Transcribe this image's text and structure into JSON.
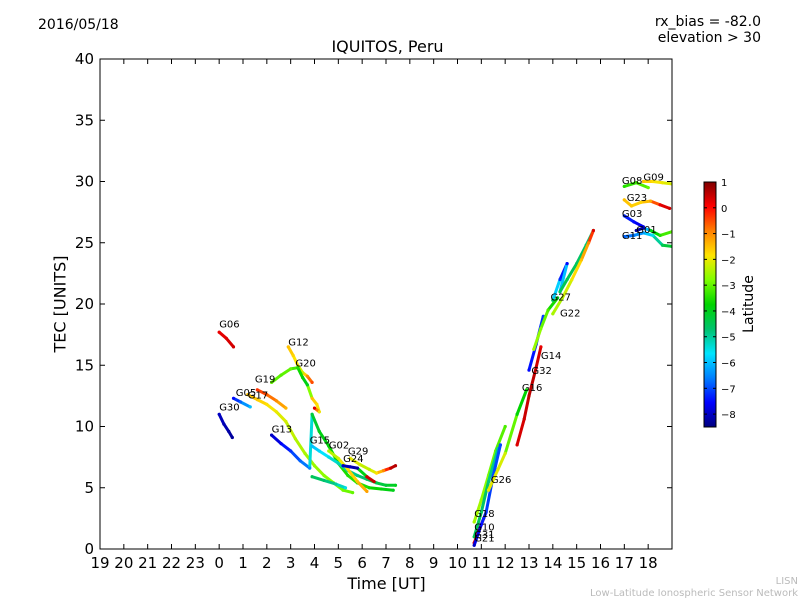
{
  "date": "2016/05/18",
  "params": {
    "rx_bias": "rx_bias = -82.0",
    "elevation": "elevation > 30"
  },
  "credit": {
    "line1": "LISN",
    "line2": "Low-Latitude Ionospheric Sensor Network"
  },
  "colorbar": {
    "label": "Latitude",
    "ticks": [
      "1",
      "0",
      "−1",
      "−2",
      "−3",
      "−4",
      "−5",
      "−6",
      "−7",
      "−8"
    ],
    "stops": [
      "#00007f",
      "#0000ff",
      "#007fff",
      "#00e5ff",
      "#00c36c",
      "#00d400",
      "#7fff00",
      "#ffe500",
      "#ff8000",
      "#ff0000",
      "#800000"
    ]
  },
  "chart_data": {
    "type": "scatter",
    "title": "IQUITOS, Peru",
    "xlabel": "Time [UT]",
    "ylabel": "TEC [UNITS]",
    "xlim": [
      19,
      43
    ],
    "ylim": [
      0,
      40
    ],
    "xticks": [
      19,
      20,
      21,
      22,
      23,
      24,
      25,
      26,
      27,
      28,
      29,
      30,
      31,
      32,
      33,
      34,
      35,
      36,
      37,
      38,
      39,
      40,
      41,
      42
    ],
    "xticklabels": [
      "19",
      "20",
      "21",
      "22",
      "23",
      "0",
      "1",
      "2",
      "3",
      "4",
      "5",
      "6",
      "7",
      "8",
      "9",
      "10",
      "11",
      "12",
      "13",
      "14",
      "15",
      "16",
      "17",
      "18"
    ],
    "yticks": [
      0,
      5,
      10,
      15,
      20,
      25,
      30,
      35,
      40
    ],
    "yticklabels": [
      "0",
      "5",
      "10",
      "15",
      "20",
      "25",
      "30",
      "35",
      "40"
    ],
    "color_scale": {
      "name": "Latitude",
      "min": -8.5,
      "max": 1.0
    },
    "series": [
      {
        "name": "G06",
        "label_at": [
          24.0,
          18.1
        ],
        "points": [
          [
            24.0,
            17.7,
            0.2
          ],
          [
            24.3,
            17.2,
            0.3
          ],
          [
            24.6,
            16.5,
            0.4
          ]
        ]
      },
      {
        "name": "G30",
        "label_at": [
          24.0,
          11.3
        ],
        "points": [
          [
            24.0,
            11.0,
            -8.0
          ],
          [
            24.2,
            10.2,
            -8.1
          ],
          [
            24.4,
            9.6,
            -8.2
          ],
          [
            24.55,
            9.1,
            -8.3
          ]
        ]
      },
      {
        "name": "G05",
        "label_at": [
          24.7,
          12.5
        ],
        "points": [
          [
            24.6,
            12.3,
            -7.5
          ],
          [
            24.9,
            12.0,
            -6.8
          ],
          [
            25.3,
            11.6,
            -6.0
          ]
        ]
      },
      {
        "name": "G17",
        "label_at": [
          25.2,
          12.3
        ],
        "points": [
          [
            25.2,
            12.6,
            -1.5
          ],
          [
            25.6,
            12.2,
            -1.6
          ],
          [
            26.0,
            11.8,
            -1.8
          ],
          [
            26.4,
            11.2,
            -2.0
          ],
          [
            26.8,
            10.4,
            -2.2
          ],
          [
            27.2,
            9.0,
            -2.4
          ],
          [
            27.6,
            7.8,
            -2.5
          ],
          [
            28.0,
            6.8,
            -2.6
          ],
          [
            28.4,
            6.0,
            -2.7
          ],
          [
            28.8,
            5.4,
            -2.8
          ],
          [
            29.2,
            4.8,
            -2.9
          ],
          [
            29.6,
            4.6,
            -3.0
          ]
        ]
      },
      {
        "name": "G19",
        "label_at": [
          25.5,
          13.6
        ],
        "points": [
          [
            25.6,
            13.0,
            -0.3
          ],
          [
            26.0,
            12.6,
            -0.6
          ],
          [
            26.4,
            12.1,
            -1.0
          ],
          [
            26.8,
            11.5,
            -1.4
          ]
        ]
      },
      {
        "name": "G12",
        "label_at": [
          26.9,
          16.6
        ],
        "points": [
          [
            26.9,
            16.5,
            -1.5
          ],
          [
            27.1,
            15.8,
            -1.7
          ],
          [
            27.3,
            15.0,
            -2.0
          ],
          [
            27.5,
            14.4,
            -2.3
          ],
          [
            27.7,
            14.1,
            -1.0
          ],
          [
            27.9,
            13.6,
            -0.5
          ]
        ]
      },
      {
        "name": "G20",
        "label_at": [
          27.2,
          14.9
        ],
        "points": [
          [
            26.2,
            13.6,
            -3.0
          ],
          [
            26.6,
            14.2,
            -3.1
          ],
          [
            27.0,
            14.7,
            -3.0
          ],
          [
            27.3,
            14.8,
            -3.5
          ],
          [
            27.5,
            14.0,
            -3.8
          ],
          [
            27.7,
            13.4,
            -4.0
          ],
          [
            27.9,
            12.3,
            -1.5
          ],
          [
            28.1,
            11.8,
            -1.8
          ],
          [
            28.2,
            11.2,
            -2.0
          ],
          [
            28.0,
            11.5,
            0.3
          ]
        ]
      },
      {
        "name": "G13",
        "label_at": [
          26.2,
          9.5
        ],
        "points": [
          [
            26.2,
            9.3,
            -8.0
          ],
          [
            26.6,
            8.6,
            -7.6
          ],
          [
            27.0,
            8.0,
            -7.2
          ],
          [
            27.4,
            7.2,
            -6.8
          ],
          [
            27.8,
            6.6,
            -6.5
          ],
          [
            27.9,
            11.0,
            -4.3
          ],
          [
            28.2,
            9.6,
            -4.0
          ],
          [
            28.6,
            8.4,
            -3.8
          ],
          [
            29.0,
            7.0,
            -3.6
          ],
          [
            29.4,
            6.0,
            -3.5
          ],
          [
            29.8,
            5.4,
            -3.4
          ],
          [
            30.3,
            5.0,
            -3.6
          ],
          [
            30.8,
            4.9,
            -3.8
          ],
          [
            31.3,
            4.8,
            -4.0
          ]
        ]
      },
      {
        "name": "G15",
        "label_at": [
          27.8,
          8.6
        ],
        "points": [
          [
            27.9,
            8.4,
            -6.0
          ],
          [
            28.2,
            8.0,
            -5.8
          ],
          [
            28.6,
            7.5,
            -5.5
          ],
          [
            29.0,
            7.0,
            -5.2
          ],
          [
            29.4,
            6.4,
            -5.0
          ],
          [
            29.8,
            6.0,
            -4.8
          ],
          [
            30.2,
            5.7,
            -4.6
          ],
          [
            30.6,
            5.4,
            -4.4
          ],
          [
            31.0,
            5.2,
            -4.2
          ],
          [
            31.4,
            5.2,
            -4.0
          ],
          [
            27.9,
            5.9,
            -4.5
          ],
          [
            28.4,
            5.6,
            -4.7
          ],
          [
            28.9,
            5.3,
            -5.0
          ],
          [
            29.3,
            5.0,
            -5.5
          ]
        ]
      },
      {
        "name": "G02",
        "label_at": [
          28.6,
          8.2
        ],
        "points": [
          [
            28.6,
            8.0,
            -2.5
          ],
          [
            29.0,
            7.4,
            -2.2
          ],
          [
            29.4,
            6.5,
            -1.8
          ],
          [
            29.8,
            5.5,
            -1.5
          ],
          [
            30.2,
            4.7,
            -1.2
          ]
        ]
      },
      {
        "name": "G29",
        "label_at": [
          29.4,
          7.7
        ],
        "points": [
          [
            29.5,
            7.4,
            -2.0
          ],
          [
            29.9,
            6.9,
            -2.2
          ],
          [
            30.3,
            6.5,
            -2.4
          ],
          [
            30.6,
            6.2,
            -1.8
          ],
          [
            30.9,
            6.4,
            -1.0
          ],
          [
            31.2,
            6.6,
            0.5
          ],
          [
            31.4,
            6.8,
            0.6
          ]
        ]
      },
      {
        "name": "G24",
        "label_at": [
          29.2,
          7.1
        ],
        "points": [
          [
            29.2,
            6.8,
            -8.0
          ],
          [
            29.5,
            6.7,
            -8.1
          ],
          [
            29.8,
            6.6,
            -8.2
          ],
          [
            30.2,
            5.9,
            0.4
          ],
          [
            30.5,
            5.5,
            0.5
          ]
        ]
      },
      {
        "name": "G18",
        "label_at": [
          34.7,
          2.6
        ],
        "points": [
          [
            34.7,
            2.2,
            -2.5
          ],
          [
            35.0,
            4.0,
            -2.6
          ],
          [
            35.3,
            6.0,
            -2.8
          ],
          [
            35.6,
            8.0,
            -3.0
          ],
          [
            36.0,
            10.0,
            -3.2
          ]
        ]
      },
      {
        "name": "G10",
        "label_at": [
          34.7,
          1.5
        ],
        "points": [
          [
            34.7,
            1.0,
            -4.5
          ],
          [
            35.0,
            3.0,
            -4.6
          ],
          [
            35.3,
            5.5,
            -4.8
          ],
          [
            35.7,
            8.2,
            -5.0
          ]
        ]
      },
      {
        "name": "G31",
        "label_at": [
          34.7,
          0.9
        ],
        "points": [
          [
            34.7,
            0.5,
            0.3
          ],
          [
            34.9,
            1.5,
            0.2
          ],
          [
            35.1,
            2.5,
            0.1
          ]
        ]
      },
      {
        "name": "G21",
        "label_at": [
          34.7,
          0.6
        ],
        "points": [
          [
            34.7,
            0.3,
            -8.0
          ],
          [
            35.0,
            2.0,
            -7.5
          ],
          [
            35.2,
            3.0,
            -7.2
          ],
          [
            35.5,
            6.0,
            -7.0
          ],
          [
            35.8,
            8.5,
            -7.0
          ]
        ]
      },
      {
        "name": "G26",
        "label_at": [
          35.4,
          5.4
        ],
        "points": [
          [
            35.3,
            4.8,
            -2.0
          ],
          [
            35.7,
            6.5,
            -2.1
          ],
          [
            36.0,
            7.8,
            -2.2
          ],
          [
            36.5,
            11.0,
            -3.8
          ],
          [
            36.9,
            13.0,
            -3.7
          ]
        ]
      },
      {
        "name": "G16",
        "label_at": [
          36.7,
          12.9
        ],
        "points": [
          [
            36.5,
            8.5,
            0.3
          ],
          [
            36.8,
            10.6,
            0.4
          ],
          [
            37.0,
            12.5,
            0.5
          ],
          [
            37.3,
            14.8,
            0.6
          ],
          [
            37.5,
            16.5,
            0.2
          ]
        ]
      },
      {
        "name": "G32",
        "label_at": [
          37.1,
          14.3
        ],
        "points": [
          [
            37.0,
            14.6,
            -7.5
          ],
          [
            37.3,
            16.7,
            -7.3
          ],
          [
            37.6,
            19.0,
            -7.1
          ]
        ]
      },
      {
        "name": "G14",
        "label_at": [
          37.5,
          15.5
        ],
        "points": [
          [
            37.2,
            16.3,
            -2.5
          ],
          [
            37.5,
            18.0,
            -2.8
          ],
          [
            37.8,
            19.5,
            -3.2
          ],
          [
            38.2,
            20.5,
            -4.0
          ]
        ]
      },
      {
        "name": "G27",
        "label_at": [
          37.9,
          20.3
        ],
        "points": [
          [
            38.0,
            20.3,
            -4.5
          ],
          [
            38.3,
            22.0,
            -7.2
          ],
          [
            38.6,
            23.3,
            -7.5
          ],
          [
            38.3,
            21.0,
            -4.5
          ],
          [
            38.6,
            22.0,
            -4.5
          ],
          [
            39.0,
            23.3,
            -4.6
          ],
          [
            39.4,
            24.8,
            -4.7
          ],
          [
            39.7,
            26.0,
            -4.8
          ]
        ]
      },
      {
        "name": "G22",
        "label_at": [
          38.3,
          19.0
        ],
        "points": [
          [
            38.0,
            19.2,
            -2.5
          ],
          [
            38.4,
            20.5,
            -2.4
          ],
          [
            38.8,
            22.0,
            -2.0
          ],
          [
            39.2,
            23.6,
            -1.5
          ],
          [
            39.5,
            25.0,
            -1.0
          ],
          [
            39.7,
            26.0,
            0.3
          ]
        ]
      },
      {
        "name": "G08",
        "label_at": [
          40.9,
          29.8
        ],
        "points": [
          [
            41.0,
            29.6,
            -3.5
          ],
          [
            41.5,
            29.9,
            -3.3
          ],
          [
            42.0,
            29.5,
            -3.0
          ]
        ]
      },
      {
        "name": "G09",
        "label_at": [
          41.8,
          30.1
        ],
        "points": [
          [
            41.8,
            30.0,
            -1.5
          ],
          [
            42.2,
            30.0,
            -1.8
          ],
          [
            42.6,
            29.9,
            -2.0
          ],
          [
            43.0,
            29.8,
            -2.2
          ]
        ]
      },
      {
        "name": "G23",
        "label_at": [
          41.1,
          28.4
        ],
        "points": [
          [
            41.0,
            28.5,
            -1.5
          ],
          [
            41.3,
            28.0,
            -1.6
          ],
          [
            41.7,
            28.3,
            -1.7
          ],
          [
            42.1,
            28.4,
            -1.3
          ],
          [
            42.5,
            28.1,
            0.2
          ],
          [
            42.9,
            27.8,
            0.4
          ]
        ]
      },
      {
        "name": "G03",
        "label_at": [
          40.9,
          27.1
        ],
        "points": [
          [
            41.0,
            27.2,
            -7.2
          ],
          [
            41.4,
            26.7,
            -7.5
          ],
          [
            41.8,
            26.3,
            -7.8
          ]
        ]
      },
      {
        "name": "G11",
        "label_at": [
          40.9,
          25.3
        ],
        "points": [
          [
            41.0,
            25.5,
            -6.8
          ],
          [
            41.4,
            25.6,
            -6.6
          ],
          [
            41.8,
            25.8,
            -6.3
          ],
          [
            42.2,
            25.6,
            -5.5
          ],
          [
            42.6,
            24.8,
            -4.5
          ],
          [
            43.0,
            24.7,
            -4.0
          ]
        ]
      },
      {
        "name": "G01",
        "label_at": [
          41.5,
          25.8
        ],
        "points": [
          [
            41.5,
            26.0,
            -8.3
          ],
          [
            41.8,
            26.2,
            -8.2
          ],
          [
            42.1,
            26.0,
            -4.0
          ],
          [
            42.5,
            25.6,
            -3.5
          ],
          [
            43.0,
            25.9,
            -3.0
          ]
        ]
      }
    ]
  }
}
